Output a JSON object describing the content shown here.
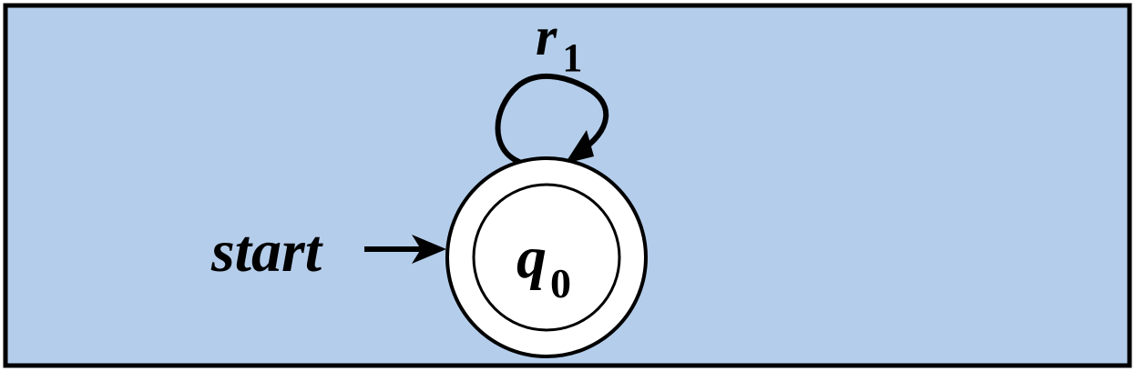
{
  "diagram": {
    "start_label": "start",
    "state": {
      "name": "q",
      "subscript": "0",
      "accepting": true
    },
    "self_loop": {
      "name": "r",
      "subscript": "1"
    }
  },
  "colors": {
    "background": "#b4cdeb",
    "border": "#000000",
    "state_fill": "#ffffff",
    "stroke": "#000000"
  }
}
